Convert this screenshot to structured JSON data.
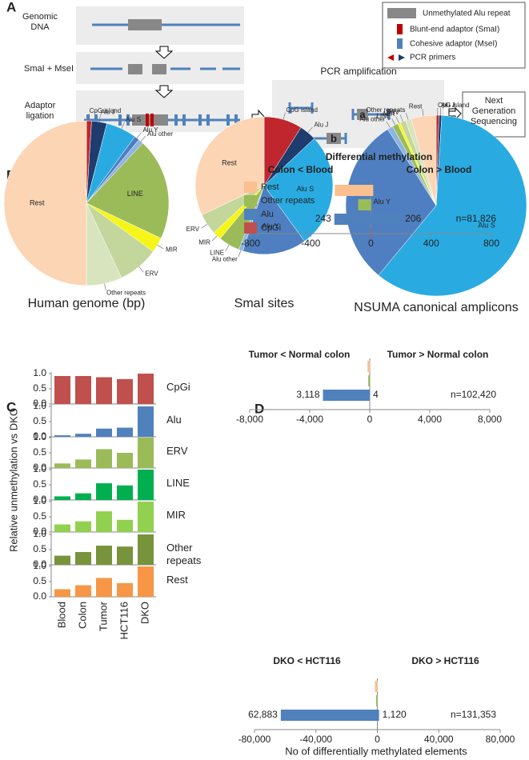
{
  "panel_labels": [
    "A",
    "B",
    "C",
    "D"
  ],
  "diagram": {
    "steps": [
      "Genomic DNA",
      "SmaI + MseI",
      "Adaptor ligation"
    ],
    "pcr_title": "PCR amplification",
    "amplicon_labels": [
      "a",
      "b"
    ],
    "output": "Next Generation Sequencing",
    "legend": [
      "Unmethylated Alu repeat",
      "Blunt-end adaptor (SmaI)",
      "Cohesive adaptor (MseI)",
      "PCR primers"
    ]
  },
  "chart_data": [
    {
      "type": "pie",
      "title": "Human genome (bp)",
      "categories": [
        "CpG island",
        "Alu J",
        "Alu S",
        "Alu Y",
        "Alu other",
        "LINE",
        "MIR",
        "ERV",
        "Other repeats",
        "Rest"
      ],
      "values": [
        1,
        3,
        6,
        1,
        1,
        20,
        3,
        8,
        7,
        50
      ],
      "colors": [
        "#c0262d",
        "#1f3c6e",
        "#29abe2",
        "#4f7fc0",
        "#8eb4e3",
        "#9bbb59",
        "#f5f51a",
        "#c3d69b",
        "#d7e4bd",
        "#fcd5b5"
      ]
    },
    {
      "type": "pie",
      "title": "SmaI sites",
      "categories": [
        "CpG island",
        "Alu J",
        "Alu S",
        "Alu Y",
        "Alu other",
        "LINE",
        "MIR",
        "ERV",
        "Rest"
      ],
      "values": [
        9,
        4,
        27,
        15,
        1,
        5,
        2,
        5,
        32
      ],
      "colors": [
        "#c0262d",
        "#1f3c6e",
        "#29abe2",
        "#4f7fc0",
        "#8eb4e3",
        "#9bbb59",
        "#f5f51a",
        "#c3d69b",
        "#fcd5b5"
      ]
    },
    {
      "type": "pie",
      "title": "NSUMA canonical amplicons",
      "categories": [
        "CpG island",
        "Alu J",
        "Alu S",
        "Alu Y",
        "Alu other",
        "LINE",
        "MIR",
        "ERV",
        "Other repeats",
        "Rest"
      ],
      "values": [
        0.5,
        0.5,
        60,
        30,
        1,
        1,
        0.5,
        1,
        1,
        4.5
      ],
      "colors": [
        "#c0262d",
        "#1f3c6e",
        "#29abe2",
        "#4f7fc0",
        "#8eb4e3",
        "#9bbb59",
        "#f5f51a",
        "#c3d69b",
        "#d7e4bd",
        "#fcd5b5"
      ]
    },
    {
      "type": "bar",
      "ylabel": "Relative unmethylation vs DKO",
      "categories": [
        "Blood",
        "Colon",
        "Tumor",
        "HCT116",
        "DKO"
      ],
      "ylim": [
        0,
        1
      ],
      "yticks": [
        {
          "value": 0,
          "label": "0.0"
        },
        {
          "value": 0.5,
          "label": "0.5"
        },
        {
          "value": 1,
          "label": "1.0"
        }
      ],
      "series": [
        {
          "name": "CpGi",
          "color": "#c0504d",
          "values": [
            0.92,
            0.92,
            0.88,
            0.82,
            1.0
          ]
        },
        {
          "name": "Alu",
          "color": "#4f81bd",
          "values": [
            0.05,
            0.1,
            0.27,
            0.3,
            1.0
          ]
        },
        {
          "name": "ERV",
          "color": "#9bbb59",
          "values": [
            0.15,
            0.28,
            0.62,
            0.5,
            1.0
          ]
        },
        {
          "name": "LINE",
          "color": "#00b050",
          "values": [
            0.12,
            0.22,
            0.55,
            0.48,
            1.0
          ]
        },
        {
          "name": "MIR",
          "color": "#92d050",
          "values": [
            0.25,
            0.35,
            0.68,
            0.4,
            1.0
          ]
        },
        {
          "name": "Other repeats",
          "color": "#77933c",
          "values": [
            0.3,
            0.42,
            0.63,
            0.6,
            1.0
          ]
        },
        {
          "name": "Rest",
          "color": "#f79646",
          "values": [
            0.25,
            0.38,
            0.62,
            0.45,
            1.0
          ]
        }
      ]
    },
    {
      "type": "diverging-bar",
      "title": "Differential methylation",
      "categories": [
        "Colon < Blood",
        "Colon > Blood"
      ],
      "legend": "upper-left",
      "annotation": "n=81,826",
      "xlim": [
        -800,
        800
      ],
      "xticks": [
        -800,
        -400,
        0,
        400,
        800
      ],
      "series": [
        {
          "name": "Rest",
          "color": "#fac090",
          "values": [
            -240,
            15
          ]
        },
        {
          "name": "Other repeats",
          "color": "#9bbb59",
          "values": [
            -85,
            2
          ]
        },
        {
          "name": "Alu",
          "color": "#4f81bd",
          "values": [
            -243,
            206
          ],
          "value_labels": [
            "243",
            "206"
          ]
        },
        {
          "name": "CpGi",
          "color": "#c0504d",
          "values": [
            -3,
            1
          ]
        }
      ]
    },
    {
      "type": "diverging-bar",
      "categories": [
        "Tumor < Normal colon",
        "Tumor > Normal colon"
      ],
      "annotation": "n=102,420",
      "xlim": [
        -8000,
        8000
      ],
      "xticks": [
        {
          "value": -8000,
          "label": "-8,000"
        },
        {
          "value": -4000,
          "label": "-4,000"
        },
        0,
        {
          "value": 4000,
          "label": "4,000"
        },
        {
          "value": 8000,
          "label": "8,000"
        }
      ],
      "series": [
        {
          "name": "Rest",
          "color": "#fac090",
          "values": [
            -150,
            10
          ]
        },
        {
          "name": "Other repeats",
          "color": "#9bbb59",
          "values": [
            -100,
            5
          ]
        },
        {
          "name": "Alu",
          "color": "#4f81bd",
          "values": [
            -3118,
            4
          ],
          "value_labels": [
            "3,118",
            "4"
          ]
        },
        {
          "name": "CpGi",
          "color": "#c0504d",
          "values": [
            -5,
            1
          ]
        }
      ]
    },
    {
      "type": "diverging-bar",
      "categories": [
        "DKO < HCT116",
        "DKO > HCT116"
      ],
      "annotation": "n=131,353",
      "xlim": [
        -80000,
        80000
      ],
      "xlabel": "No of differentially methylated elements",
      "xticks": [
        {
          "value": -80000,
          "label": "-80,000"
        },
        {
          "value": -40000,
          "label": "-40,000"
        },
        0,
        {
          "value": 40000,
          "label": "40,000"
        },
        {
          "value": 80000,
          "label": "80,000"
        }
      ],
      "series": [
        {
          "name": "Rest",
          "color": "#fac090",
          "values": [
            -1500,
            300
          ]
        },
        {
          "name": "Other repeats",
          "color": "#9bbb59",
          "values": [
            -800,
            200
          ]
        },
        {
          "name": "Alu",
          "color": "#4f81bd",
          "values": [
            -62883,
            1120
          ],
          "value_labels": [
            "62,883",
            "1,120"
          ]
        },
        {
          "name": "CpGi",
          "color": "#c0504d",
          "values": [
            -50,
            10
          ]
        }
      ]
    }
  ]
}
